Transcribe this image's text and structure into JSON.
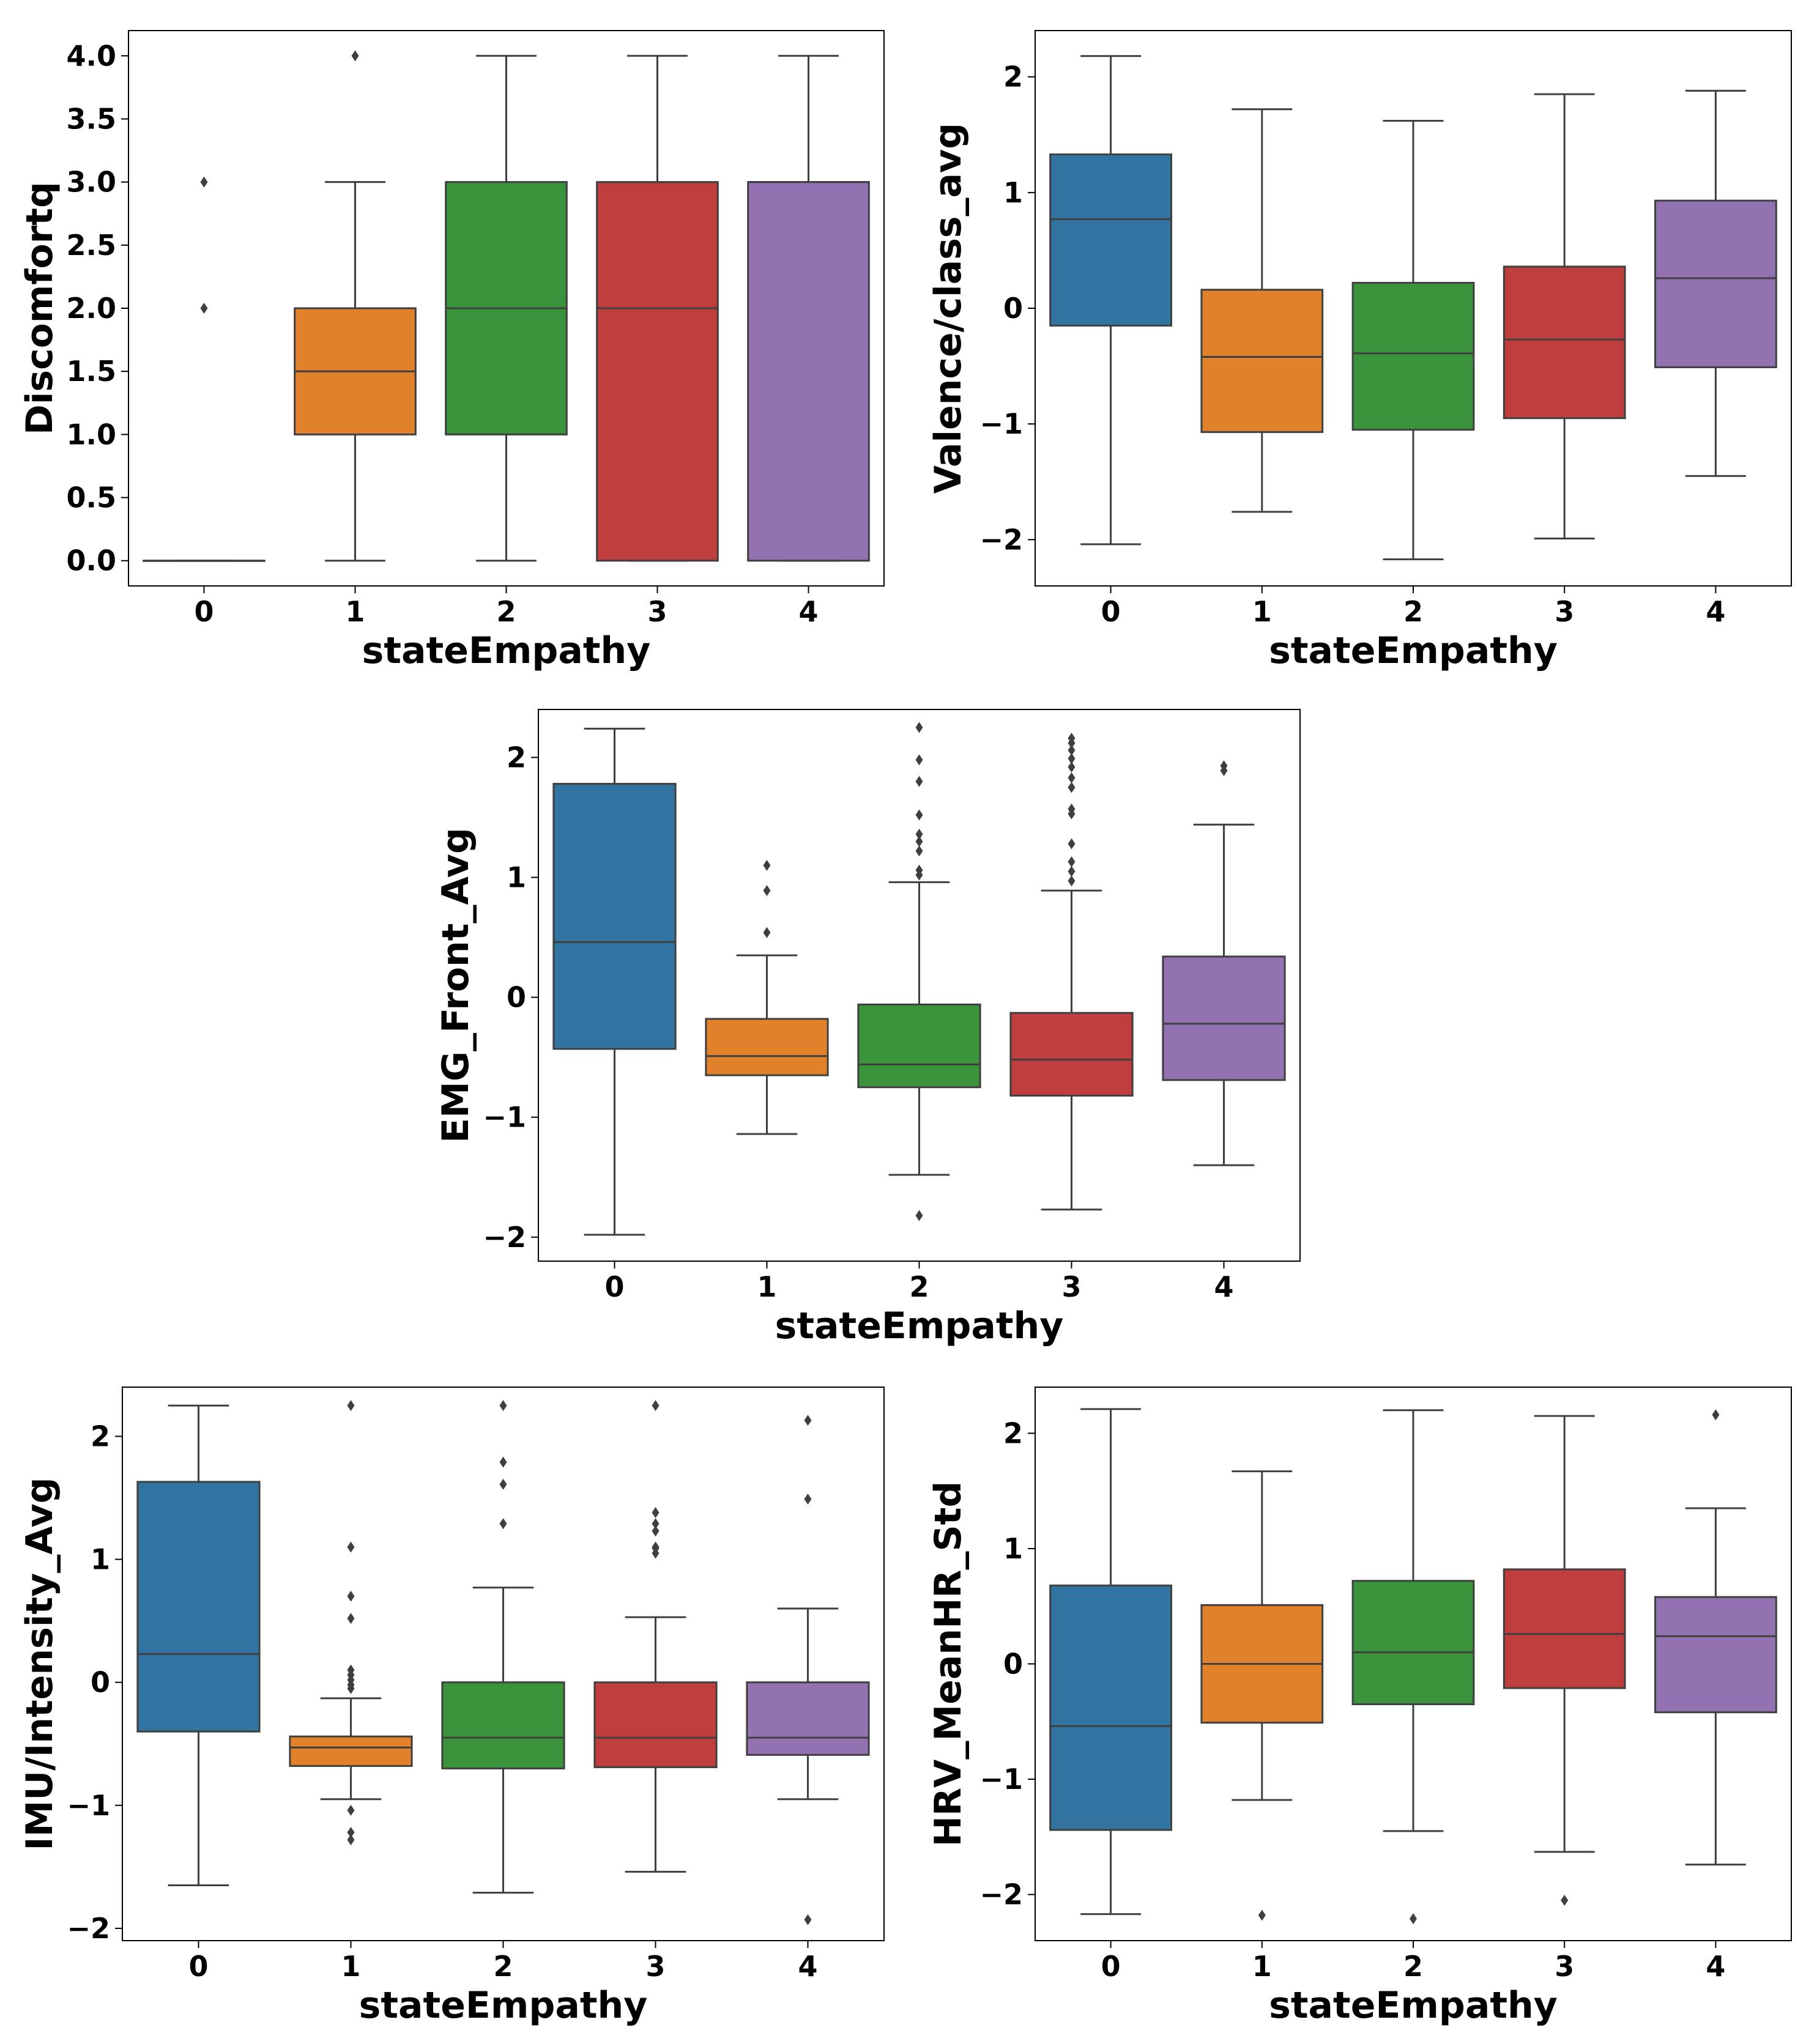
{
  "chart_data": [
    {
      "type": "box",
      "id": "discomfortq",
      "xlabel": "stateEmpathy",
      "ylabel": "Discomfortq",
      "categories": [
        "0",
        "1",
        "2",
        "3",
        "4"
      ],
      "ylim": [
        -0.2,
        4.2
      ],
      "yticks": [
        0.0,
        0.5,
        1.0,
        1.5,
        2.0,
        2.5,
        3.0,
        3.5,
        4.0
      ],
      "ytick_labels": [
        "0.0",
        "0.5",
        "1.0",
        "1.5",
        "2.0",
        "2.5",
        "3.0",
        "3.5",
        "4.0"
      ],
      "boxes": [
        {
          "category": "0",
          "whislo": 0.0,
          "q1": 0.0,
          "med": 0.0,
          "q3": 0.0,
          "whishi": 0.0,
          "fliers": [
            2.0,
            3.0
          ]
        },
        {
          "category": "1",
          "whislo": 0.0,
          "q1": 1.0,
          "med": 1.5,
          "q3": 2.0,
          "whishi": 3.0,
          "fliers": [
            4.0
          ]
        },
        {
          "category": "2",
          "whislo": 0.0,
          "q1": 1.0,
          "med": 2.0,
          "q3": 3.0,
          "whishi": 4.0,
          "fliers": []
        },
        {
          "category": "3",
          "whislo": 0.0,
          "q1": 0.0,
          "med": 2.0,
          "q3": 3.0,
          "whishi": 4.0,
          "fliers": []
        },
        {
          "category": "4",
          "whislo": 0.0,
          "q1": 0.0,
          "med": 3.0,
          "q3": 3.0,
          "whishi": 4.0,
          "fliers": []
        }
      ]
    },
    {
      "type": "box",
      "id": "valence",
      "xlabel": "stateEmpathy",
      "ylabel": "Valence/class_avg",
      "categories": [
        "0",
        "1",
        "2",
        "3",
        "4"
      ],
      "ylim": [
        -2.4,
        2.4
      ],
      "yticks": [
        -2,
        -1,
        0,
        1,
        2
      ],
      "ytick_labels": [
        "−2",
        "−1",
        "0",
        "1",
        "2"
      ],
      "boxes": [
        {
          "category": "0",
          "whislo": -2.04,
          "q1": -0.15,
          "med": 0.77,
          "q3": 1.33,
          "whishi": 2.18,
          "fliers": []
        },
        {
          "category": "1",
          "whislo": -1.76,
          "q1": -1.07,
          "med": -0.42,
          "q3": 0.16,
          "whishi": 1.72,
          "fliers": []
        },
        {
          "category": "2",
          "whislo": -2.17,
          "q1": -1.05,
          "med": -0.39,
          "q3": 0.22,
          "whishi": 1.62,
          "fliers": []
        },
        {
          "category": "3",
          "whislo": -1.99,
          "q1": -0.95,
          "med": -0.27,
          "q3": 0.36,
          "whishi": 1.85,
          "fliers": []
        },
        {
          "category": "4",
          "whislo": -1.45,
          "q1": -0.51,
          "med": 0.26,
          "q3": 0.93,
          "whishi": 1.88,
          "fliers": []
        }
      ]
    },
    {
      "type": "box",
      "id": "emg",
      "xlabel": "stateEmpathy",
      "ylabel": "EMG_Front_Avg",
      "categories": [
        "0",
        "1",
        "2",
        "3",
        "4"
      ],
      "ylim": [
        -2.2,
        2.4
      ],
      "yticks": [
        -2,
        -1,
        0,
        1,
        2
      ],
      "ytick_labels": [
        "−2",
        "−1",
        "0",
        "1",
        "2"
      ],
      "boxes": [
        {
          "category": "0",
          "whislo": -1.98,
          "q1": -0.43,
          "med": 0.46,
          "q3": 1.78,
          "whishi": 2.24,
          "fliers": []
        },
        {
          "category": "1",
          "whislo": -1.14,
          "q1": -0.65,
          "med": -0.49,
          "q3": -0.18,
          "whishi": 0.35,
          "fliers": [
            0.54,
            0.89,
            1.1
          ]
        },
        {
          "category": "2",
          "whislo": -1.48,
          "q1": -0.75,
          "med": -0.56,
          "q3": -0.06,
          "whishi": 0.96,
          "fliers": [
            -1.82,
            1.02,
            1.06,
            1.22,
            1.3,
            1.36,
            1.52,
            1.8,
            1.98,
            2.25
          ]
        },
        {
          "category": "3",
          "whislo": -1.77,
          "q1": -0.82,
          "med": -0.52,
          "q3": -0.13,
          "whishi": 0.89,
          "fliers": [
            0.97,
            1.05,
            1.13,
            1.28,
            1.53,
            1.57,
            1.75,
            1.83,
            1.92,
            1.99,
            2.06,
            2.12,
            2.16
          ]
        },
        {
          "category": "4",
          "whislo": -1.4,
          "q1": -0.69,
          "med": -0.22,
          "q3": 0.34,
          "whishi": 1.44,
          "fliers": [
            1.89,
            1.93
          ]
        }
      ]
    },
    {
      "type": "box",
      "id": "imu",
      "xlabel": "stateEmpathy",
      "ylabel": "IMU/Intensity_Avg",
      "categories": [
        "0",
        "1",
        "2",
        "3",
        "4"
      ],
      "ylim": [
        -2.1,
        2.4
      ],
      "yticks": [
        -2,
        -1,
        0,
        1,
        2
      ],
      "ytick_labels": [
        "−2",
        "−1",
        "0",
        "1",
        "2"
      ],
      "boxes": [
        {
          "category": "0",
          "whislo": -1.65,
          "q1": -0.4,
          "med": 0.23,
          "q3": 1.63,
          "whishi": 2.25,
          "fliers": []
        },
        {
          "category": "1",
          "whislo": -0.95,
          "q1": -0.68,
          "med": -0.53,
          "q3": -0.44,
          "whishi": -0.13,
          "fliers": [
            -1.28,
            -1.22,
            -1.04,
            -0.05,
            -0.02,
            0.02,
            0.06,
            0.1,
            0.52,
            0.7,
            1.1,
            2.25
          ]
        },
        {
          "category": "2",
          "whislo": -1.71,
          "q1": -0.7,
          "med": -0.45,
          "q3": 0.0,
          "whishi": 0.77,
          "fliers": [
            1.29,
            1.61,
            1.79,
            2.25
          ]
        },
        {
          "category": "3",
          "whislo": -1.54,
          "q1": -0.69,
          "med": -0.45,
          "q3": 0.0,
          "whishi": 0.53,
          "fliers": [
            1.05,
            1.09,
            1.1,
            1.23,
            1.29,
            1.38,
            2.25
          ]
        },
        {
          "category": "4",
          "whislo": -0.95,
          "q1": -0.59,
          "med": -0.45,
          "q3": 0.0,
          "whishi": 0.6,
          "fliers": [
            -1.93,
            1.49,
            2.13
          ]
        }
      ]
    },
    {
      "type": "box",
      "id": "hrv",
      "xlabel": "stateEmpathy",
      "ylabel": "HRV_MeanHR_Std",
      "categories": [
        "0",
        "1",
        "2",
        "3",
        "4"
      ],
      "ylim": [
        -2.4,
        2.4
      ],
      "yticks": [
        -2,
        -1,
        0,
        1,
        2
      ],
      "ytick_labels": [
        "−2",
        "−1",
        "0",
        "1",
        "2"
      ],
      "boxes": [
        {
          "category": "0",
          "whislo": -2.17,
          "q1": -1.44,
          "med": -0.54,
          "q3": 0.68,
          "whishi": 2.21,
          "fliers": []
        },
        {
          "category": "1",
          "whislo": -1.18,
          "q1": -0.51,
          "med": 0.0,
          "q3": 0.51,
          "whishi": 1.67,
          "fliers": [
            -2.18
          ]
        },
        {
          "category": "2",
          "whislo": -1.45,
          "q1": -0.35,
          "med": 0.1,
          "q3": 0.72,
          "whishi": 2.2,
          "fliers": [
            -2.21
          ]
        },
        {
          "category": "3",
          "whislo": -1.63,
          "q1": -0.21,
          "med": 0.26,
          "q3": 0.82,
          "whishi": 2.15,
          "fliers": [
            -2.05
          ]
        },
        {
          "category": "4",
          "whislo": -1.74,
          "q1": -0.42,
          "med": 0.24,
          "q3": 0.58,
          "whishi": 1.35,
          "fliers": [
            2.16
          ]
        }
      ]
    }
  ],
  "colors": {
    "categories": [
      "#3274a1",
      "#e1812c",
      "#3a923a",
      "#c03d3e",
      "#9372b2"
    ],
    "line": "#3f3f3f",
    "axes": "#000000",
    "background": "#ffffff"
  }
}
